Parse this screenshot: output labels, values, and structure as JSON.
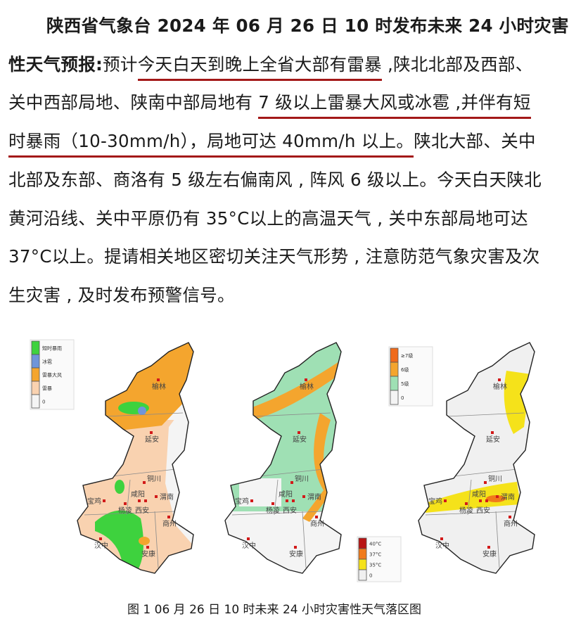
{
  "text": {
    "lines": [
      [
        {
          "t": "陕西省气象台 2024 年 06 月 26 日 10 时发布未来 24 小时灾害",
          "u": false
        }
      ],
      [
        {
          "t": "性天气预报:",
          "u": false
        },
        {
          "t": "预计",
          "u": false
        },
        {
          "t": "今天白天到晚上全省大部有雷暴",
          "u": true
        },
        {
          "t": " ,陕北北部及西部、",
          "u": false
        }
      ],
      [
        {
          "t": "关中西部局地、陕南中部局地有 ",
          "u": false
        },
        {
          "t": "7 级以上雷暴大风或冰雹 ,并伴有短",
          "u": true
        }
      ],
      [
        {
          "t": "时暴雨（10-30mm/h），局地可达 40mm/h 以上。",
          "u": true
        },
        {
          "t": "陕北大部、关中",
          "u": false
        }
      ],
      [
        {
          "t": "北部及东部、商洛有 5 级左右偏南风 , 阵风 6 级以上。今天白天陕北",
          "u": false
        }
      ],
      [
        {
          "t": "黄河沿线、关中平原仍有 35°C以上的高温天气 , 关中东部局地可达",
          "u": false
        }
      ],
      [
        {
          "t": "37°C以上。提请相关地区密切关注天气形势 , 注意防范气象灾害及次",
          "u": false
        }
      ],
      [
        {
          "t": "生灾害 , 及时发布预警信号。",
          "u": false
        }
      ]
    ]
  },
  "maps": [
    {
      "legend": [
        {
          "label": "短时暴雨",
          "color": "#3ed23e"
        },
        {
          "label": "冰雹",
          "color": "#6f95d9"
        },
        {
          "label": "雷暴大风",
          "color": "#f4a52e"
        },
        {
          "label": "雷暴",
          "color": "#f9d2b0"
        },
        {
          "label": "0",
          "color": "#f4f4f4"
        }
      ]
    },
    {
      "legend": [
        {
          "label": "≥7级",
          "color": "#f06a1a"
        },
        {
          "label": "6级",
          "color": "#f4a52e"
        },
        {
          "label": "5级",
          "color": "#9fe0b4"
        },
        {
          "label": "0",
          "color": "#f4f4f4"
        }
      ]
    },
    {
      "legend": [
        {
          "label": "40°C",
          "color": "#b81414"
        },
        {
          "label": "37°C",
          "color": "#f07a1a"
        },
        {
          "label": "35°C",
          "color": "#f5e21a"
        },
        {
          "label": "0",
          "color": "#f0f0f0"
        }
      ]
    }
  ],
  "cities": [
    "榆林",
    "延安",
    "铜川",
    "咸阳",
    "宝鸡",
    "杨凌",
    "西安",
    "渭南",
    "商州",
    "汉中",
    "安康"
  ],
  "caption": "图 1 06 月 26 日 10 时未来 24 小时灾害性天气落区图"
}
